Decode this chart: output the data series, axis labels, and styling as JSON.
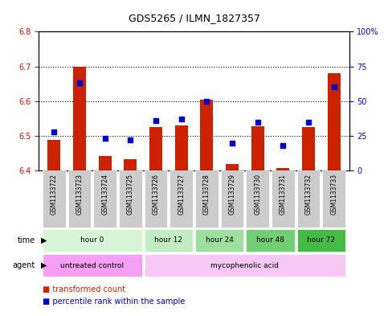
{
  "title": "GDS5265 / ILMN_1827357",
  "samples": [
    "GSM1133722",
    "GSM1133723",
    "GSM1133724",
    "GSM1133725",
    "GSM1133726",
    "GSM1133727",
    "GSM1133728",
    "GSM1133729",
    "GSM1133730",
    "GSM1133731",
    "GSM1133732",
    "GSM1133733"
  ],
  "red_values": [
    6.488,
    6.7,
    6.443,
    6.432,
    6.525,
    6.53,
    6.603,
    6.418,
    6.528,
    6.408,
    6.525,
    6.68
  ],
  "blue_values": [
    28,
    63,
    23,
    22,
    36,
    37,
    50,
    20,
    35,
    18,
    35,
    60
  ],
  "red_baseline": 6.4,
  "ylim_left": [
    6.4,
    6.8
  ],
  "ylim_right": [
    0,
    100
  ],
  "yticks_left": [
    6.4,
    6.5,
    6.6,
    6.7,
    6.8
  ],
  "yticks_right": [
    0,
    25,
    50,
    75,
    100
  ],
  "ytick_labels_right": [
    "0",
    "25",
    "50",
    "75",
    "100%"
  ],
  "time_groups": [
    {
      "label": "hour 0",
      "start": 0,
      "end": 4,
      "color": "#d4f5d4"
    },
    {
      "label": "hour 12",
      "start": 4,
      "end": 6,
      "color": "#c0ecc0"
    },
    {
      "label": "hour 24",
      "start": 6,
      "end": 8,
      "color": "#a0e0a0"
    },
    {
      "label": "hour 48",
      "start": 8,
      "end": 10,
      "color": "#80d080"
    },
    {
      "label": "hour 72",
      "start": 10,
      "end": 12,
      "color": "#50c050"
    }
  ],
  "agent_groups": [
    {
      "label": "untreated control",
      "start": 0,
      "end": 4,
      "color": "#f0a0f0"
    },
    {
      "label": "mycophenolic acid",
      "start": 4,
      "end": 12,
      "color": "#f0a0f0"
    }
  ],
  "bar_color": "#cc2200",
  "dot_color": "#0000cc",
  "grid_color": "#000000",
  "background_color": "#ffffff",
  "sample_label_bg": "#cccccc",
  "legend_items": [
    "transformed count",
    "percentile rank within the sample"
  ]
}
